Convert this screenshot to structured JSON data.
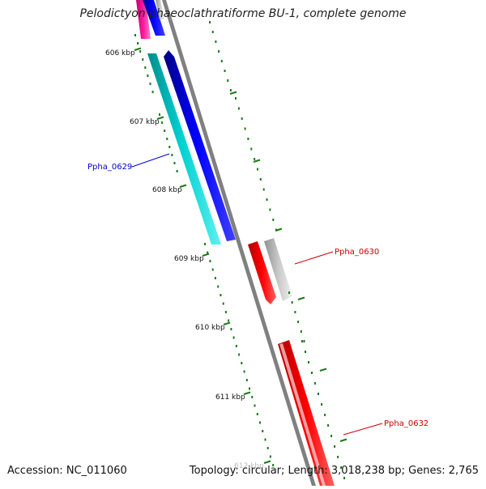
{
  "title": "Pelodictyon phaeoclathratiforme BU-1, complete genome",
  "accession": "Accession: NC_011060",
  "topology": "Topology: circular; Length: 3,018,238 bp; Genes: 2,765",
  "ticks": [
    "606 kbp",
    "607 kbp",
    "608 kbp",
    "609 kbp",
    "610 kbp",
    "611 kbp",
    "612 kbp"
  ],
  "genes": [
    {
      "label": "Ppha_0629",
      "color": "#0000cc"
    },
    {
      "label": "Ppha_0630",
      "color": "#cc0000"
    },
    {
      "label": "Ppha_0632",
      "color": "#cc0000"
    }
  ],
  "colors": {
    "backbone": "#808080",
    "tick": "#1a7a1a",
    "blue": "#0000ee",
    "cyan": "#00cccc",
    "red": "#ff0000",
    "gray": "#b0b0b0",
    "magenta": "#e8189a"
  }
}
